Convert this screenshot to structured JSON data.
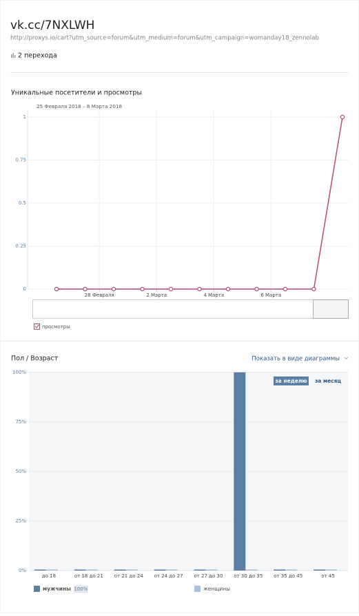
{
  "header": {
    "title": "vk.cc/7NXLWH",
    "url": "http://proxys.io/cart?utm_source=forum&utm_medium=forum&utm_campaign=womanday18_zennolab",
    "clicks": "2 перехода"
  },
  "chart_data": [
    {
      "type": "line",
      "title": "Уникальные посетители и просмотры",
      "subtitle": "25 Февраля 2018 – 8 Марта 2018",
      "categories": [
        null,
        null,
        "28 Февраля",
        null,
        "2 Марта",
        null,
        "4 Марта",
        null,
        "6 Марта",
        null,
        null
      ],
      "series": [
        {
          "name": "просмотры",
          "color": "#b5487e",
          "values": [
            0,
            0,
            0,
            0,
            0,
            0,
            0,
            0,
            0,
            0,
            1
          ]
        }
      ],
      "ylim": [
        0,
        1
      ],
      "yticks": [
        0,
        0.25,
        0.5,
        0.75,
        1
      ],
      "grid": true
    },
    {
      "type": "bar",
      "title": "Пол / Возраст",
      "view_toggle": "Показать в виде диаграммы",
      "periods": [
        "за неделю",
        "за месяц"
      ],
      "categories": [
        "до 18",
        "от 18 до 21",
        "от 21 до 24",
        "от 24 до 27",
        "от 27 до 30",
        "от 30 до 35",
        "от 35 до 45",
        "от 45"
      ],
      "series": [
        {
          "name": "мужчины",
          "color": "#5b7ea5",
          "share": "100%",
          "values": [
            0,
            0,
            0,
            0,
            0,
            100,
            0,
            0
          ]
        },
        {
          "name": "женщины",
          "color": "#a9c1db",
          "values": [
            0,
            0,
            0,
            0,
            0,
            0,
            0,
            0
          ]
        }
      ],
      "ylim": [
        0,
        100
      ],
      "yticks": [
        {
          "value": 0,
          "label": "0%"
        },
        {
          "value": 25,
          "label": "25%"
        },
        {
          "value": 50,
          "label": "50%"
        },
        {
          "value": 75,
          "label": "75%"
        },
        {
          "value": 100,
          "label": "100%"
        }
      ],
      "grid": true
    }
  ]
}
